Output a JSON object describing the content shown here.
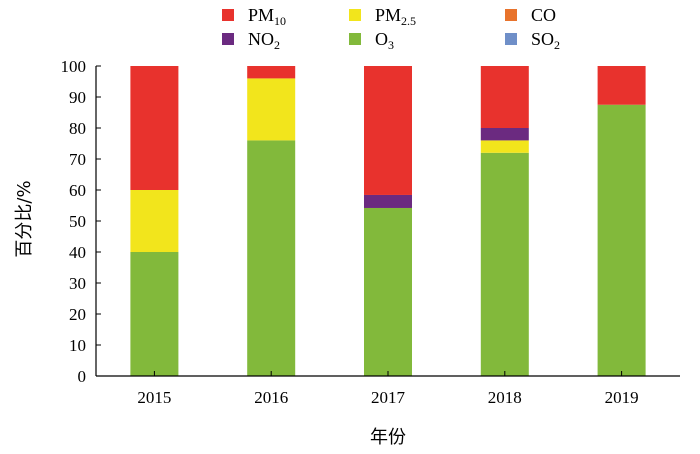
{
  "chart_data": {
    "type": "bar",
    "stacked": true,
    "xlabel": "年份",
    "ylabel": "百分比/%",
    "ylim": [
      0,
      100
    ],
    "yticks": [
      0,
      10,
      20,
      30,
      40,
      50,
      60,
      70,
      80,
      90,
      100
    ],
    "grid": false,
    "legend_position": "top",
    "categories": [
      "2015",
      "2016",
      "2017",
      "2018",
      "2019"
    ],
    "series": [
      {
        "name": "O3",
        "color": "#82b93b",
        "values": [
          40,
          76,
          54.2,
          72,
          87.5
        ]
      },
      {
        "name": "PM2.5",
        "color": "#f2e51c",
        "values": [
          20,
          20,
          0,
          4,
          0
        ]
      },
      {
        "name": "NO2",
        "color": "#6b2a80",
        "values": [
          0,
          0,
          4.2,
          4,
          0
        ]
      },
      {
        "name": "CO",
        "color": "#e8732c",
        "values": [
          0,
          0,
          0,
          0,
          0
        ]
      },
      {
        "name": "SO2",
        "color": "#6f8fc8",
        "values": [
          0,
          0,
          0,
          0,
          0
        ]
      },
      {
        "name": "PM10",
        "color": "#e8322d",
        "values": [
          40,
          4,
          41.6,
          20,
          12.5
        ]
      }
    ],
    "legend": [
      {
        "series": "PM10",
        "base": "PM",
        "sub": "10",
        "color": "#e8322d"
      },
      {
        "series": "PM2.5",
        "base": "PM",
        "sub": "2.5",
        "color": "#f2e51c"
      },
      {
        "series": "CO",
        "base": "CO",
        "sub": "",
        "color": "#e8732c"
      },
      {
        "series": "NO2",
        "base": "NO",
        "sub": "2",
        "color": "#6b2a80"
      },
      {
        "series": "O3",
        "base": "O",
        "sub": "3",
        "color": "#82b93b"
      },
      {
        "series": "SO2",
        "base": "SO",
        "sub": "2",
        "color": "#6f8fc8"
      }
    ]
  }
}
